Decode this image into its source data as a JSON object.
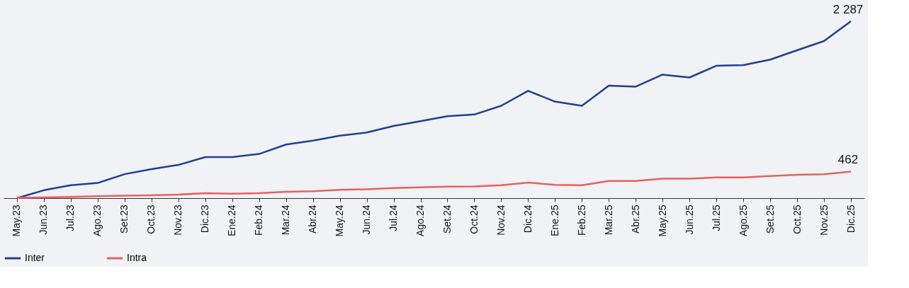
{
  "chart_data": {
    "type": "line",
    "categories": [
      "May.23",
      "Jun.23",
      "Jul.23",
      "Ago.23",
      "Set.23",
      "Oct.23",
      "Nov.23",
      "Dic.23",
      "Ene.24",
      "Feb.24",
      "Mar.24",
      "Abr.24",
      "May.24",
      "Jun.24",
      "Jul.24",
      "Ago.24",
      "Set.24",
      "Oct.24",
      "Nov.24",
      "Dic.24",
      "Ene.25",
      "Feb.25",
      "Mar.25",
      "Abr.25",
      "May.25",
      "Jun.25",
      "Jul.25",
      "Ago.25",
      "Set.25",
      "Oct.25",
      "Nov.25",
      "Dic.25"
    ],
    "series": [
      {
        "name": "Inter",
        "color": "#1f3f8f",
        "values": [
          139,
          235,
          296,
          323,
          430,
          491,
          542,
          637,
          637,
          675,
          790,
          837,
          897,
          936,
          1016,
          1074,
          1134,
          1154,
          1260,
          1442,
          1311,
          1260,
          1505,
          1493,
          1639,
          1604,
          1746,
          1754,
          1821,
          1935,
          2046,
          2287
        ],
        "value_labels": [
          null,
          null,
          null,
          null,
          null,
          null,
          null,
          null,
          null,
          null,
          null,
          null,
          null,
          null,
          null,
          null,
          null,
          null,
          null,
          null,
          null,
          null,
          null,
          null,
          null,
          null,
          null,
          null,
          null,
          null,
          null,
          "2 287"
        ]
      },
      {
        "name": "Intra",
        "color": "#e8615f",
        "values": [
          143,
          147,
          155,
          162,
          170,
          174,
          182,
          200,
          192,
          200,
          216,
          223,
          239,
          247,
          262,
          270,
          278,
          280,
          296,
          328,
          300,
          296,
          347,
          347,
          375,
          375,
          391,
          391,
          407,
          422,
          430,
          462
        ],
        "value_labels": [
          null,
          null,
          null,
          null,
          null,
          null,
          null,
          null,
          null,
          null,
          null,
          null,
          null,
          null,
          null,
          null,
          null,
          null,
          null,
          null,
          null,
          null,
          null,
          null,
          null,
          null,
          null,
          null,
          null,
          null,
          null,
          "462"
        ]
      }
    ],
    "legend": "bottom",
    "grid": false,
    "marker": "none",
    "line_style": "solid",
    "tick_labels": "x"
  }
}
